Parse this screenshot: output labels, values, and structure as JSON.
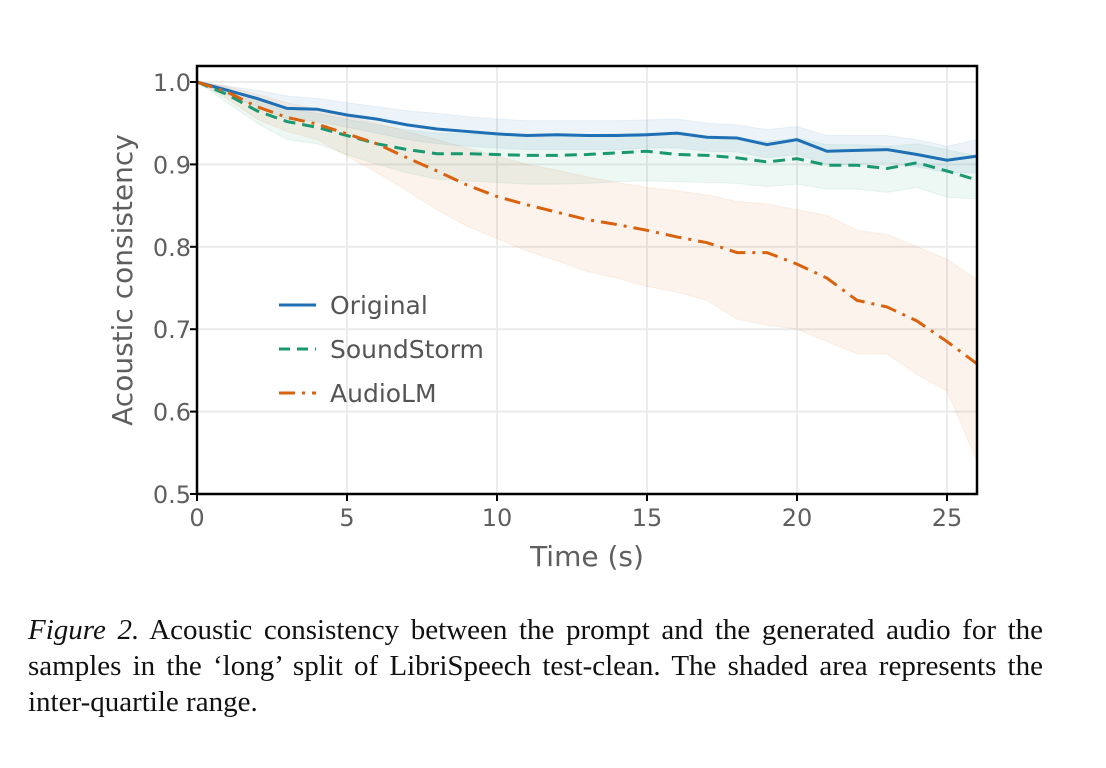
{
  "chart_data": {
    "type": "line",
    "title": "",
    "xlabel": "Time (s)",
    "ylabel": "Acoustic consistency",
    "xlim": [
      0,
      26
    ],
    "ylim": [
      0.5,
      1.0
    ],
    "xticks": [
      0,
      5,
      10,
      15,
      20,
      25
    ],
    "xtick_labels": [
      "0",
      "5",
      "10",
      "15",
      "20",
      "25"
    ],
    "yticks": [
      0.5,
      0.6,
      0.7,
      0.8,
      0.9,
      1.0
    ],
    "ytick_labels": [
      "0.5",
      "0.6",
      "0.7",
      "0.8",
      "0.9",
      "1.0"
    ],
    "grid": true,
    "legend_position": "center-left",
    "x": [
      0,
      1,
      2,
      3,
      4,
      5,
      6,
      7,
      8,
      9,
      10,
      11,
      12,
      13,
      14,
      15,
      16,
      17,
      18,
      19,
      20,
      21,
      22,
      23,
      24,
      25,
      26
    ],
    "series": [
      {
        "name": "Original",
        "color": "#1f6fb4",
        "style": "solid",
        "values": [
          1.0,
          0.99,
          0.98,
          0.968,
          0.967,
          0.96,
          0.955,
          0.948,
          0.943,
          0.94,
          0.937,
          0.935,
          0.936,
          0.935,
          0.935,
          0.936,
          0.938,
          0.933,
          0.932,
          0.924,
          0.93,
          0.916,
          0.917,
          0.918,
          0.912,
          0.905,
          0.91
        ],
        "iqr_low": [
          1.0,
          0.985,
          0.97,
          0.955,
          0.952,
          0.945,
          0.938,
          0.93,
          0.925,
          0.922,
          0.92,
          0.918,
          0.918,
          0.918,
          0.918,
          0.92,
          0.92,
          0.916,
          0.915,
          0.908,
          0.912,
          0.9,
          0.9,
          0.902,
          0.897,
          0.89,
          0.89
        ],
        "iqr_high": [
          1.0,
          0.995,
          0.99,
          0.983,
          0.98,
          0.975,
          0.97,
          0.965,
          0.962,
          0.958,
          0.955,
          0.953,
          0.953,
          0.953,
          0.953,
          0.954,
          0.955,
          0.95,
          0.948,
          0.942,
          0.946,
          0.935,
          0.935,
          0.935,
          0.93,
          0.922,
          0.93
        ]
      },
      {
        "name": "SoundStorm",
        "color": "#1a9870",
        "style": "dashed",
        "values": [
          1.0,
          0.985,
          0.965,
          0.952,
          0.945,
          0.935,
          0.925,
          0.918,
          0.913,
          0.913,
          0.912,
          0.911,
          0.911,
          0.912,
          0.914,
          0.916,
          0.912,
          0.911,
          0.908,
          0.903,
          0.907,
          0.899,
          0.899,
          0.895,
          0.902,
          0.892,
          0.881
        ],
        "iqr_low": [
          1.0,
          0.975,
          0.95,
          0.93,
          0.925,
          0.912,
          0.9,
          0.89,
          0.882,
          0.88,
          0.878,
          0.876,
          0.876,
          0.877,
          0.879,
          0.88,
          0.879,
          0.878,
          0.877,
          0.873,
          0.876,
          0.87,
          0.87,
          0.866,
          0.872,
          0.86,
          0.858
        ],
        "iqr_high": [
          1.0,
          0.993,
          0.978,
          0.968,
          0.962,
          0.955,
          0.948,
          0.942,
          0.938,
          0.937,
          0.936,
          0.935,
          0.935,
          0.936,
          0.937,
          0.938,
          0.936,
          0.934,
          0.932,
          0.928,
          0.932,
          0.924,
          0.924,
          0.922,
          0.925,
          0.918,
          0.91
        ]
      },
      {
        "name": "AudioLM",
        "color": "#d9620f",
        "style": "dashdot",
        "values": [
          1.0,
          0.988,
          0.97,
          0.957,
          0.949,
          0.937,
          0.925,
          0.908,
          0.892,
          0.875,
          0.861,
          0.851,
          0.842,
          0.833,
          0.827,
          0.82,
          0.812,
          0.805,
          0.793,
          0.793,
          0.779,
          0.762,
          0.735,
          0.727,
          0.71,
          0.685,
          0.658
        ],
        "iqr_low": [
          1.0,
          0.98,
          0.955,
          0.94,
          0.93,
          0.91,
          0.89,
          0.868,
          0.845,
          0.825,
          0.81,
          0.795,
          0.783,
          0.77,
          0.762,
          0.752,
          0.745,
          0.735,
          0.712,
          0.705,
          0.7,
          0.685,
          0.67,
          0.67,
          0.645,
          0.625,
          0.54
        ],
        "iqr_high": [
          1.0,
          0.995,
          0.985,
          0.975,
          0.967,
          0.958,
          0.95,
          0.94,
          0.93,
          0.92,
          0.91,
          0.9,
          0.893,
          0.885,
          0.878,
          0.872,
          0.868,
          0.863,
          0.855,
          0.852,
          0.845,
          0.838,
          0.82,
          0.815,
          0.8,
          0.785,
          0.76
        ]
      }
    ]
  },
  "caption": {
    "label": "Figure 2.",
    "text": " Acoustic consistency between the prompt and the generated audio for the samples in the ‘long’ split of LibriSpeech test-clean. The shaded area represents the inter-quartile range."
  }
}
